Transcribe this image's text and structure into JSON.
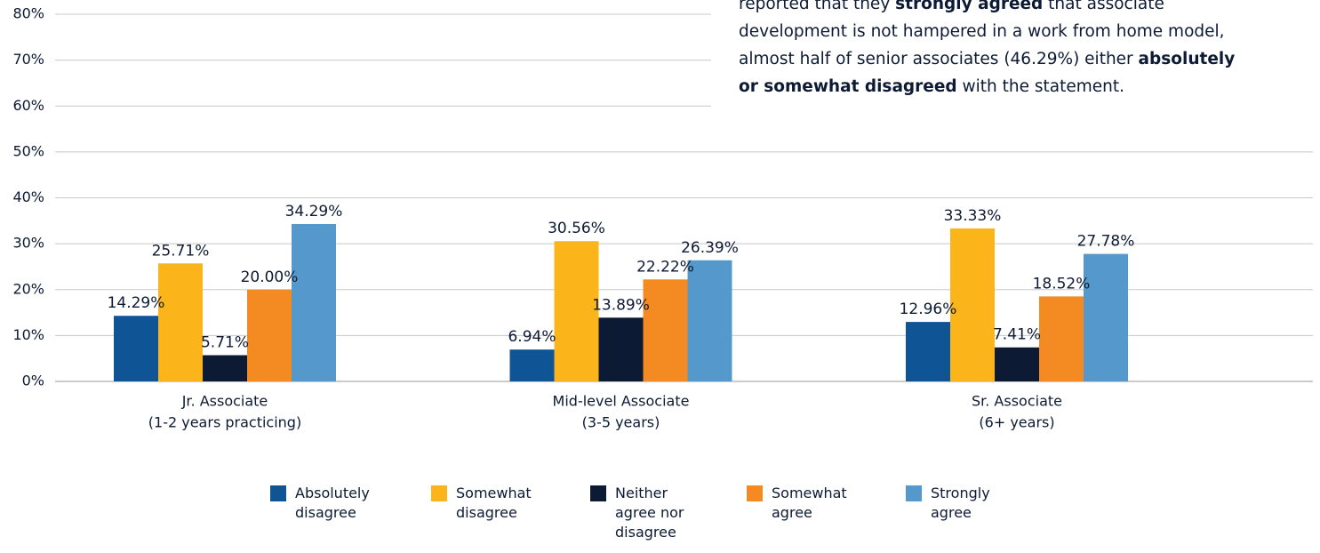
{
  "chart_data": {
    "type": "bar",
    "categories": [
      [
        "Jr. Associate",
        "(1-2 years practicing)"
      ],
      [
        "Mid-level Associate",
        "(3-5 years)"
      ],
      [
        "Sr. Associate",
        "(6+ years)"
      ]
    ],
    "series": [
      {
        "name": "Absolutely disagree",
        "color": "#0f5596",
        "values": [
          14.29,
          6.94,
          12.96
        ],
        "value_labels": [
          "14.29%",
          "6.94%",
          "12.96%"
        ]
      },
      {
        "name": "Somewhat disagree",
        "color": "#fbb51a",
        "values": [
          25.71,
          30.56,
          33.33
        ],
        "value_labels": [
          "25.71%",
          "30.56%",
          "33.33%"
        ]
      },
      {
        "name": "Neither agree nor disagree",
        "color": "#0c1a33",
        "values": [
          5.71,
          13.89,
          7.41
        ],
        "value_labels": [
          "5.71%",
          "13.89%",
          "7.41%"
        ]
      },
      {
        "name": "Somewhat agree",
        "color": "#f38a22",
        "values": [
          20.0,
          22.22,
          18.52
        ],
        "value_labels": [
          "20.00%",
          "22.22%",
          "18.52%"
        ]
      },
      {
        "name": "Strongly agree",
        "color": "#5599cc",
        "values": [
          34.29,
          26.39,
          27.78
        ],
        "value_labels": [
          "34.29%",
          "26.39%",
          "27.78%"
        ]
      }
    ],
    "ylim": [
      0,
      80
    ],
    "yticks": [
      {
        "value": 0,
        "label": "0%"
      },
      {
        "value": 10,
        "label": "10%"
      },
      {
        "value": 20,
        "label": "20%"
      },
      {
        "value": 30,
        "label": "30%"
      },
      {
        "value": 40,
        "label": "40%"
      },
      {
        "value": 50,
        "label": "50%"
      },
      {
        "value": 60,
        "label": "60%"
      },
      {
        "value": 70,
        "label": "70%"
      },
      {
        "value": 80,
        "label": "80%"
      }
    ],
    "grid": true,
    "annotation": [
      [
        {
          "text": "reported that they ",
          "bold": false
        },
        {
          "text": "strongly agreed",
          "bold": true
        },
        {
          "text": " that associate",
          "bold": false
        }
      ],
      [
        {
          "text": "development is not hampered in a work from home model,",
          "bold": false
        }
      ],
      [
        {
          "text": "almost half of senior associates (46.29%) either ",
          "bold": false
        },
        {
          "text": "absolutely",
          "bold": true
        }
      ],
      [
        {
          "text": "or somewhat disagreed",
          "bold": true
        },
        {
          "text": " with the statement.",
          "bold": false
        }
      ]
    ]
  }
}
